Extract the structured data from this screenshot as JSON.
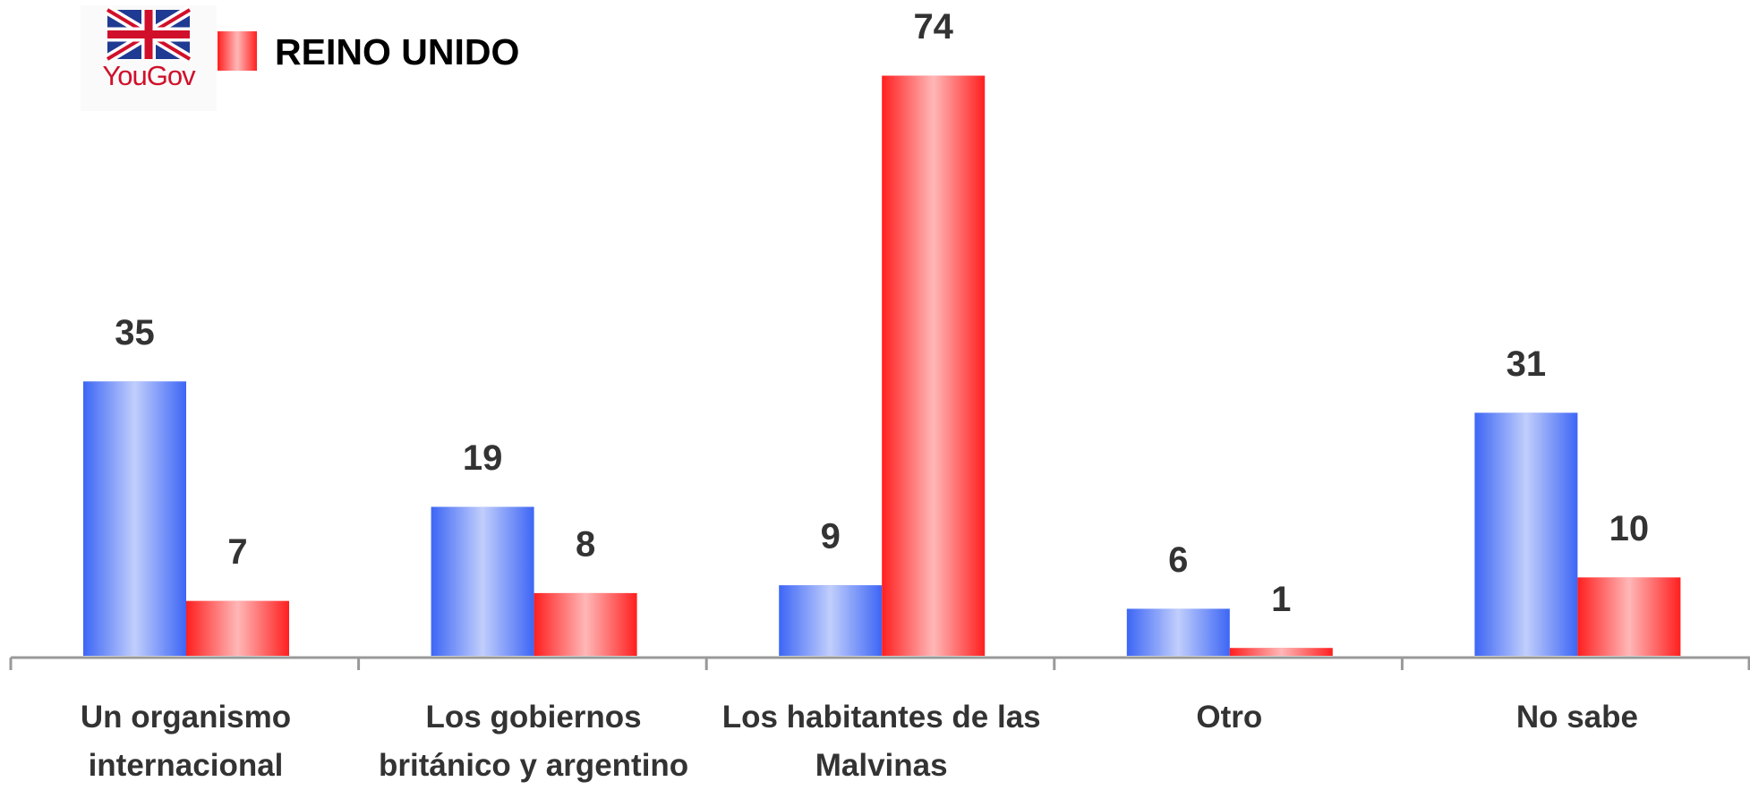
{
  "chart_data": {
    "type": "bar",
    "logo": "YouGov",
    "categories": [
      "Un organismo internacional",
      "Los gobiernos británico y argentino",
      "Los habitantes de las Malvinas",
      "Otro",
      "No sabe"
    ],
    "series": [
      {
        "color": "#3d66f5",
        "values": [
          35,
          19,
          9,
          6,
          31
        ]
      },
      {
        "name": "REINO UNIDO",
        "color": "#ff1f1f",
        "values": [
          7,
          8,
          74,
          1,
          10
        ]
      }
    ],
    "ylim": [
      0,
      80
    ]
  }
}
